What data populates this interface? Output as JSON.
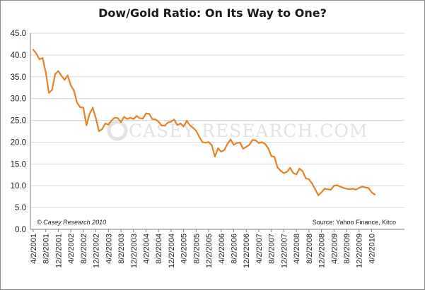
{
  "colors": {
    "line": "#e88228",
    "grid": "#d9d9d9",
    "axis": "#808080",
    "watermark": "#e3e3e3"
  },
  "chart_data": {
    "type": "line",
    "title": "Dow/Gold Ratio: On Its Way to One?",
    "xlabel": "",
    "ylabel": "",
    "ylim": [
      0,
      45
    ],
    "yticks": [
      0,
      5,
      10,
      15,
      20,
      25,
      30,
      35,
      40,
      45
    ],
    "ytick_labels": [
      "0.0",
      "5.0",
      "10.0",
      "15.0",
      "20.0",
      "25.0",
      "30.0",
      "35.0",
      "40.0",
      "45.0"
    ],
    "xtick_labels": [
      "4/2/2001",
      "8/2/2001",
      "12/2/2001",
      "4/2/2002",
      "8/2/2002",
      "12/2/2002",
      "4/2/2003",
      "8/2/2003",
      "12/2/2003",
      "4/2/2004",
      "8/2/2004",
      "12/2/2004",
      "4/2/2005",
      "8/2/2005",
      "12/2/2005",
      "4/2/2006",
      "8/2/2006",
      "12/2/2006",
      "4/2/2007",
      "8/2/2007",
      "12/2/2007",
      "4/2/2008",
      "8/2/2008",
      "12/2/2008",
      "4/2/2009",
      "8/2/2009",
      "12/2/2009",
      "4/2/2010"
    ],
    "grid": true,
    "series": [
      {
        "name": "Dow/Gold Ratio",
        "x_start": "4/2/2001",
        "x_step": "monthly",
        "values": [
          41.2,
          40.3,
          39.0,
          39.3,
          36.0,
          31.3,
          32.0,
          35.6,
          36.3,
          35.2,
          34.3,
          35.3,
          33.0,
          31.8,
          29.0,
          28.0,
          27.9,
          23.9,
          26.5,
          27.9,
          25.5,
          22.5,
          23.0,
          24.3,
          24.0,
          25.0,
          25.6,
          25.5,
          24.6,
          25.8,
          25.3,
          25.6,
          25.3,
          26.0,
          25.5,
          25.4,
          26.6,
          26.5,
          25.3,
          25.2,
          24.7,
          23.8,
          23.8,
          24.5,
          24.7,
          25.2,
          23.9,
          24.3,
          23.6,
          24.9,
          23.9,
          23.3,
          22.6,
          21.2,
          20.0,
          19.9,
          20.0,
          19.3,
          16.7,
          18.6,
          17.8,
          18.2,
          19.6,
          20.6,
          19.4,
          19.8,
          19.9,
          18.5,
          18.9,
          19.4,
          20.5,
          20.4,
          19.8,
          20.0,
          19.6,
          18.6,
          16.8,
          16.6,
          14.2,
          13.4,
          12.9,
          13.2,
          14.1,
          12.9,
          12.6,
          13.9,
          13.3,
          11.7,
          11.5,
          10.5,
          9.2,
          7.8,
          8.5,
          9.3,
          9.2,
          9.1,
          10.0,
          10.1,
          9.8,
          9.5,
          9.3,
          9.2,
          9.3,
          9.1,
          9.5,
          9.8,
          9.6,
          9.5,
          8.5,
          8.0
        ]
      }
    ],
    "annotations": {
      "copyright": "© Casey Research 2010",
      "source": "Source: Yahoo Finance, Kitco",
      "watermark": "CASEY RESEARCH.COM"
    }
  }
}
